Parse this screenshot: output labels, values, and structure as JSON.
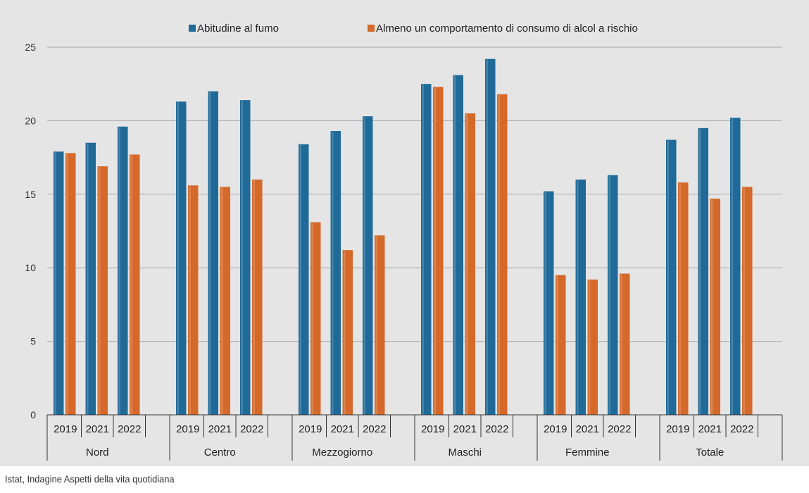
{
  "chart_data": {
    "type": "bar",
    "ylim": [
      0,
      25
    ],
    "yticks": [
      0,
      5,
      10,
      15,
      20,
      25
    ],
    "grid": true,
    "legend_position": "top-center",
    "groups": [
      "Nord",
      "Centro",
      "Mezzogiorno",
      "Maschi",
      "Femmine",
      "Totale"
    ],
    "years": [
      "2019",
      "2021",
      "2022"
    ],
    "series": [
      {
        "name": "Abitudine al fumo",
        "color": "#1f6a98",
        "values": [
          [
            17.9,
            18.5,
            19.6
          ],
          [
            21.3,
            22.0,
            21.4
          ],
          [
            18.4,
            19.3,
            20.3
          ],
          [
            22.5,
            23.1,
            24.2
          ],
          [
            15.2,
            16.0,
            16.3
          ],
          [
            18.7,
            19.5,
            20.2
          ]
        ]
      },
      {
        "name": "Almeno un comportamento di consumo di alcol a rischio",
        "color": "#d4692a",
        "values": [
          [
            17.8,
            16.9,
            17.7
          ],
          [
            15.6,
            15.5,
            16.0
          ],
          [
            13.1,
            11.2,
            12.2
          ],
          [
            22.3,
            20.5,
            21.8
          ],
          [
            9.5,
            9.2,
            9.6
          ],
          [
            15.8,
            14.7,
            15.5
          ]
        ]
      }
    ]
  },
  "source": "Istat, Indagine Aspetti della vita quotidiana"
}
